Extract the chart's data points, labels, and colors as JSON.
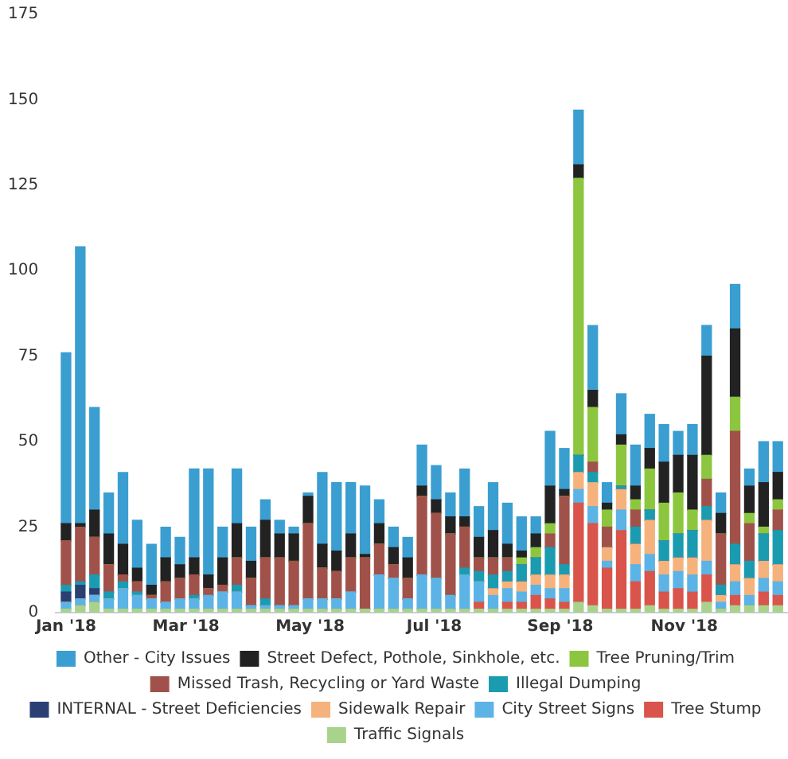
{
  "chart_data": {
    "type": "bar",
    "stacked": true,
    "legend": "bottom",
    "grid": false,
    "x": [
      "2018-01-01",
      "2018-01-08",
      "2018-01-15",
      "2018-01-22",
      "2018-01-29",
      "2018-02-05",
      "2018-02-12",
      "2018-02-19",
      "2018-02-26",
      "2018-03-05",
      "2018-03-12",
      "2018-03-19",
      "2018-03-26",
      "2018-04-02",
      "2018-04-09",
      "2018-04-16",
      "2018-04-23",
      "2018-04-30",
      "2018-05-07",
      "2018-05-14",
      "2018-05-21",
      "2018-05-28",
      "2018-06-04",
      "2018-06-11",
      "2018-06-18",
      "2018-06-25",
      "2018-07-02",
      "2018-07-09",
      "2018-07-16",
      "2018-07-23",
      "2018-07-30",
      "2018-08-06",
      "2018-08-13",
      "2018-08-20",
      "2018-08-27",
      "2018-09-03",
      "2018-09-10",
      "2018-09-17",
      "2018-09-24",
      "2018-10-01",
      "2018-10-08",
      "2018-10-15",
      "2018-10-22",
      "2018-10-29",
      "2018-11-05",
      "2018-11-12",
      "2018-11-19",
      "2018-11-26",
      "2018-12-03",
      "2018-12-10",
      "2018-12-17"
    ],
    "xlim": [
      "2017-12-27",
      "2018-12-22"
    ],
    "xticks": [
      {
        "value": "2018-01-01",
        "label": "Jan '18"
      },
      {
        "value": "2018-03-01",
        "label": "Mar '18"
      },
      {
        "value": "2018-05-01",
        "label": "May '18"
      },
      {
        "value": "2018-07-01",
        "label": "Jul '18"
      },
      {
        "value": "2018-09-01",
        "label": "Sep '18"
      },
      {
        "value": "2018-11-01",
        "label": "Nov '18"
      }
    ],
    "ylim": [
      0,
      175
    ],
    "yticks": [
      0,
      25,
      50,
      75,
      100,
      125,
      150,
      175
    ],
    "series": [
      {
        "name": "Traffic Signals",
        "color": "#a9d38c",
        "values": [
          1,
          2,
          3,
          1,
          1,
          1,
          1,
          1,
          1,
          1,
          1,
          1,
          1,
          1,
          1,
          1,
          1,
          1,
          1,
          1,
          1,
          1,
          1,
          1,
          1,
          1,
          1,
          1,
          1,
          1,
          1,
          1,
          1,
          1,
          1,
          1,
          3,
          2,
          1,
          1,
          1,
          2,
          1,
          1,
          1,
          3,
          1,
          2,
          2,
          2,
          2
        ]
      },
      {
        "name": "Tree Stump",
        "color": "#d9544a",
        "values": [
          0,
          0,
          0,
          0,
          0,
          0,
          0,
          0,
          0,
          0,
          0,
          0,
          0,
          0,
          0,
          0,
          0,
          0,
          0,
          0,
          0,
          0,
          0,
          0,
          0,
          0,
          0,
          0,
          0,
          2,
          0,
          2,
          2,
          4,
          3,
          2,
          29,
          24,
          12,
          23,
          8,
          10,
          5,
          6,
          5,
          8,
          0,
          3,
          0,
          4,
          3
        ]
      },
      {
        "name": "City Street Signs",
        "color": "#5cb3e6",
        "values": [
          2,
          2,
          2,
          3,
          6,
          4,
          3,
          2,
          3,
          3,
          4,
          5,
          5,
          1,
          1,
          1,
          1,
          3,
          3,
          3,
          5,
          0,
          10,
          9,
          3,
          10,
          9,
          4,
          10,
          6,
          4,
          4,
          3,
          3,
          3,
          4,
          4,
          5,
          2,
          6,
          5,
          5,
          5,
          5,
          5,
          4,
          2,
          4,
          3,
          4,
          4
        ]
      },
      {
        "name": "Sidewalk Repair",
        "color": "#f6b27c",
        "values": [
          0,
          0,
          0,
          0,
          0,
          0,
          0,
          0,
          0,
          0,
          0,
          0,
          0,
          0,
          0,
          0,
          0,
          0,
          0,
          0,
          0,
          0,
          0,
          0,
          0,
          0,
          0,
          0,
          0,
          0,
          2,
          2,
          3,
          3,
          4,
          4,
          5,
          7,
          4,
          6,
          6,
          10,
          4,
          4,
          5,
          12,
          2,
          5,
          5,
          5,
          5
        ]
      },
      {
        "name": "INTERNAL - Street Deficiencies",
        "color": "#2b3f73",
        "values": [
          3,
          4,
          2,
          0,
          0,
          0,
          0,
          0,
          0,
          0,
          0,
          0,
          0,
          0,
          0,
          0,
          0,
          0,
          0,
          0,
          0,
          0,
          0,
          0,
          0,
          0,
          0,
          0,
          0,
          0,
          0,
          0,
          0,
          0,
          0,
          0,
          0,
          0,
          0,
          0,
          0,
          0,
          0,
          0,
          0,
          0,
          0,
          0,
          0,
          0,
          0
        ]
      },
      {
        "name": "Illegal Dumping",
        "color": "#1b9bb0",
        "values": [
          2,
          1,
          4,
          2,
          2,
          1,
          0,
          0,
          0,
          1,
          0,
          0,
          2,
          0,
          2,
          0,
          0,
          0,
          0,
          0,
          0,
          0,
          0,
          0,
          0,
          0,
          0,
          0,
          2,
          3,
          4,
          3,
          5,
          5,
          8,
          3,
          5,
          3,
          0,
          1,
          5,
          3,
          6,
          7,
          8,
          4,
          3,
          6,
          5,
          8,
          10
        ]
      },
      {
        "name": "Missed Trash, Recycling or Yard Waste",
        "color": "#a0524a",
        "values": [
          13,
          16,
          11,
          8,
          2,
          3,
          1,
          6,
          6,
          6,
          2,
          2,
          8,
          8,
          12,
          14,
          13,
          22,
          9,
          8,
          10,
          15,
          9,
          4,
          6,
          23,
          19,
          18,
          12,
          4,
          5,
          4,
          0,
          0,
          4,
          20,
          0,
          3,
          6,
          0,
          5,
          0,
          0,
          0,
          0,
          8,
          15,
          33,
          11,
          0,
          6
        ]
      },
      {
        "name": "Tree Pruning/Trim",
        "color": "#8cc63f",
        "values": [
          0,
          0,
          0,
          0,
          0,
          0,
          0,
          0,
          0,
          0,
          0,
          0,
          0,
          0,
          0,
          0,
          0,
          0,
          0,
          0,
          0,
          0,
          0,
          0,
          0,
          0,
          0,
          0,
          0,
          0,
          0,
          0,
          2,
          3,
          3,
          0,
          81,
          16,
          5,
          12,
          3,
          12,
          11,
          12,
          6,
          7,
          0,
          10,
          3,
          2,
          3
        ]
      },
      {
        "name": "Street Defect, Pothole, Sinkhole, etc.",
        "color": "#222222",
        "values": [
          5,
          1,
          8,
          9,
          9,
          4,
          3,
          7,
          4,
          5,
          4,
          8,
          10,
          5,
          11,
          7,
          8,
          8,
          7,
          6,
          7,
          1,
          6,
          5,
          6,
          3,
          4,
          5,
          3,
          6,
          8,
          4,
          2,
          4,
          11,
          2,
          4,
          5,
          2,
          3,
          4,
          6,
          12,
          11,
          16,
          29,
          6,
          20,
          8,
          13,
          8
        ]
      },
      {
        "name": "Other - City Issues",
        "color": "#3a9ed1",
        "values": [
          50,
          81,
          30,
          12,
          21,
          14,
          12,
          9,
          8,
          26,
          31,
          9,
          16,
          10,
          6,
          4,
          2,
          1,
          21,
          20,
          15,
          20,
          7,
          6,
          6,
          12,
          10,
          7,
          14,
          9,
          14,
          12,
          10,
          5,
          16,
          12,
          16,
          19,
          6,
          12,
          12,
          10,
          11,
          7,
          9,
          9,
          6,
          13,
          5,
          12,
          9
        ]
      }
    ]
  }
}
